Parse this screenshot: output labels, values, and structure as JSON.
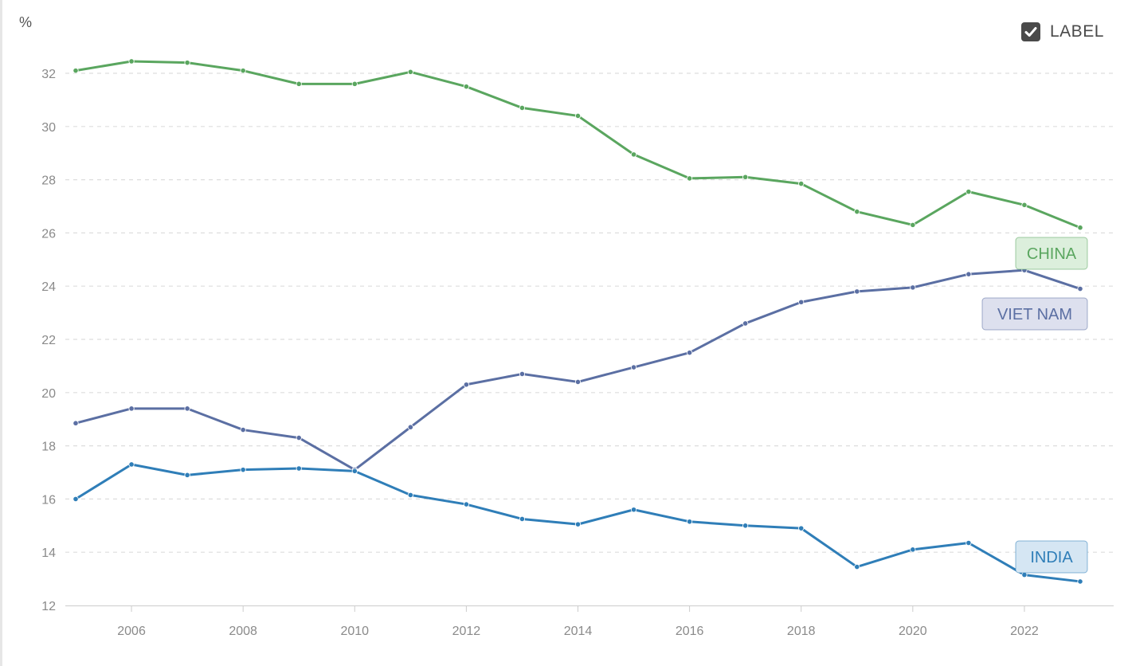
{
  "legend_toggle": {
    "label": "LABEL",
    "checked": true,
    "icon": "checkbox-checked-icon"
  },
  "chart_data": {
    "type": "line",
    "title": "",
    "xlabel": "",
    "ylabel": "%",
    "x": [
      2005,
      2006,
      2007,
      2008,
      2009,
      2010,
      2011,
      2012,
      2013,
      2014,
      2015,
      2016,
      2017,
      2018,
      2019,
      2020,
      2021,
      2022,
      2023
    ],
    "x_ticks": [
      "2006",
      "2008",
      "2010",
      "2012",
      "2014",
      "2016",
      "2018",
      "2020",
      "2022"
    ],
    "y_ticks": [
      "12",
      "14",
      "16",
      "18",
      "20",
      "22",
      "24",
      "26",
      "28",
      "30",
      "32"
    ],
    "xlim": [
      2004.9,
      2023.6
    ],
    "ylim": [
      12,
      33.5
    ],
    "grid": true,
    "series": [
      {
        "name": "CHINA",
        "color": "#5aa65f",
        "label_fill": "#dcefdc",
        "values": [
          32.1,
          32.45,
          32.4,
          32.1,
          31.6,
          31.6,
          32.05,
          31.5,
          30.7,
          30.4,
          28.95,
          28.05,
          28.1,
          27.85,
          26.8,
          26.3,
          27.55,
          27.05,
          26.2
        ]
      },
      {
        "name": "VIET NAM",
        "color": "#5b6fa3",
        "label_fill": "#dde0ee",
        "values": [
          18.85,
          19.4,
          19.4,
          18.6,
          18.3,
          17.1,
          18.7,
          20.3,
          20.7,
          20.4,
          20.95,
          21.5,
          22.6,
          23.4,
          23.8,
          23.95,
          24.45,
          24.6,
          23.9
        ]
      },
      {
        "name": "INDIA",
        "color": "#2f7eb8",
        "label_fill": "#d5e6f3",
        "values": [
          16.0,
          17.3,
          16.9,
          17.1,
          17.15,
          17.05,
          16.15,
          15.8,
          15.25,
          15.05,
          15.6,
          15.15,
          15.0,
          14.9,
          13.45,
          14.1,
          14.35,
          13.15,
          12.9
        ]
      }
    ]
  }
}
